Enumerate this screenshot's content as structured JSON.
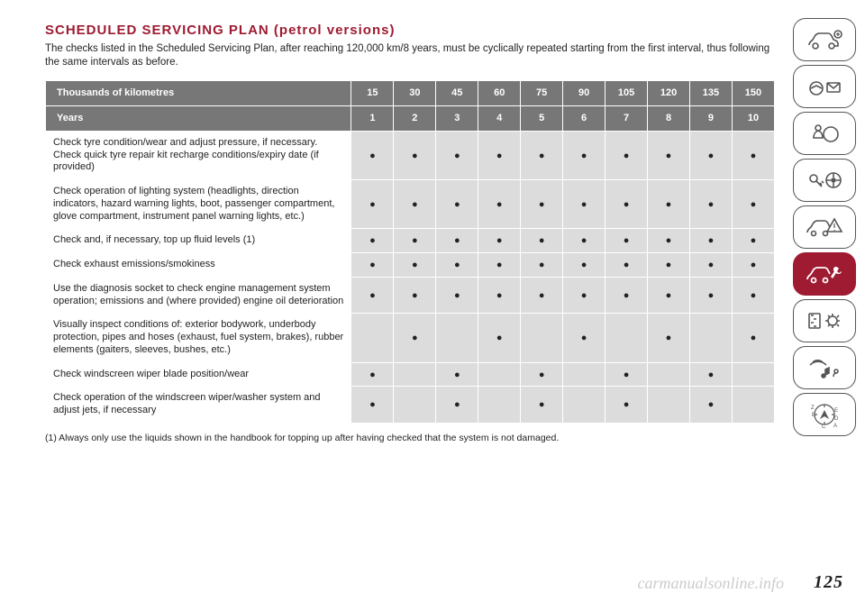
{
  "title": "SCHEDULED SERVICING PLAN (petrol versions)",
  "intro": "The checks listed in the Scheduled Servicing Plan, after reaching 120,000 km/8 years, must be cyclically repeated starting from the first interval, thus following the same intervals as before.",
  "table": {
    "header1_label": "Thousands of kilometres",
    "header1_values": [
      "15",
      "30",
      "45",
      "60",
      "75",
      "90",
      "105",
      "120",
      "135",
      "150"
    ],
    "header2_label": "Years",
    "header2_values": [
      "1",
      "2",
      "3",
      "4",
      "5",
      "6",
      "7",
      "8",
      "9",
      "10"
    ],
    "dot": "●",
    "rows": [
      {
        "label": "Check tyre condition/wear and adjust pressure, if necessary. Check quick tyre repair kit recharge conditions/expiry date (if provided)",
        "marks": [
          1,
          1,
          1,
          1,
          1,
          1,
          1,
          1,
          1,
          1
        ]
      },
      {
        "label": "Check operation of lighting system (headlights, direction indicators, hazard warning lights, boot, passenger compartment, glove compartment, instrument panel warning lights, etc.)",
        "marks": [
          1,
          1,
          1,
          1,
          1,
          1,
          1,
          1,
          1,
          1
        ]
      },
      {
        "label": "Check and, if necessary, top up fluid levels (1)",
        "marks": [
          1,
          1,
          1,
          1,
          1,
          1,
          1,
          1,
          1,
          1
        ]
      },
      {
        "label": "Check exhaust emissions/smokiness",
        "marks": [
          1,
          1,
          1,
          1,
          1,
          1,
          1,
          1,
          1,
          1
        ]
      },
      {
        "label": "Use the diagnosis socket to check engine management system operation; emissions and (where provided) engine oil deterioration",
        "marks": [
          1,
          1,
          1,
          1,
          1,
          1,
          1,
          1,
          1,
          1
        ]
      },
      {
        "label": "Visually inspect conditions of: exterior bodywork, underbody protection, pipes and hoses (exhaust, fuel system, brakes), rubber elements (gaiters, sleeves, bushes, etc.)",
        "marks": [
          0,
          1,
          0,
          1,
          0,
          1,
          0,
          1,
          0,
          1
        ]
      },
      {
        "label": "Check windscreen wiper blade position/wear",
        "marks": [
          1,
          0,
          1,
          0,
          1,
          0,
          1,
          0,
          1,
          0
        ]
      },
      {
        "label": "Check operation of the windscreen wiper/washer system and adjust jets, if necessary",
        "marks": [
          1,
          0,
          1,
          0,
          1,
          0,
          1,
          0,
          1,
          0
        ]
      }
    ]
  },
  "footnote": "(1) Always only use the liquids shown in the handbook for topping up after having checked that the system is not damaged.",
  "page_number": "125",
  "watermark": "carmanualsonline.info",
  "styling": {
    "accent_color": "#9e1b32",
    "header_bg": "#777777",
    "cell_bg": "#dcdcdc",
    "text_color": "#222222",
    "page_bg": "#ffffff"
  },
  "sidebar": {
    "active_index": 5,
    "tabs": [
      "car-info",
      "dashboard",
      "airbag",
      "key-wheel",
      "car-warning",
      "car-service",
      "settings",
      "media",
      "nav-compass"
    ]
  }
}
